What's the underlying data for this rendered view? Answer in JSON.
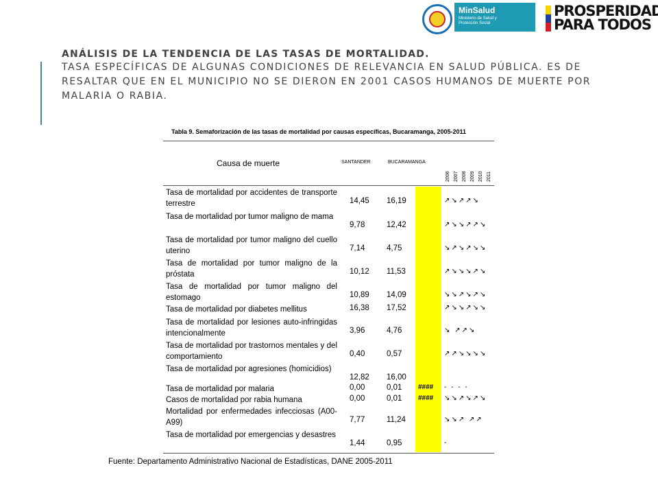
{
  "logos": {
    "minsalud_title": "MinSalud",
    "minsalud_sub": "Ministerio de Salud y Protección Social",
    "prosperidad_line1": "PROSPERIDAD",
    "prosperidad_line2": "PARA TODOS"
  },
  "heading": "Análisis de la tendencia de las tasas de mortalidad.",
  "body": "Tasa específicas de algunas condiciones de relevancia en salud pública. Es de resaltar que en el municipio no se dieron en 2001 casos humanos de muerte por malaria o rabia.",
  "table": {
    "caption": "Tabla 9. Semaforización de las tasas de mortalidad por causas específicas, Bucaramanga, 2005-2011",
    "col_cause": "Causa de muerte",
    "col_santander": "SANTANDER",
    "col_bucaramanga": "BUCARAMANGA",
    "years": [
      "2006",
      "2007",
      "2008",
      "2009",
      "2010",
      "2011"
    ],
    "rows": [
      {
        "cause": "Tasa de mortalidad por accidentes de transporte terrestre",
        "santander": "14,45",
        "bucaramanga": "16,19",
        "hash": "",
        "trend": "↗↘↗↗↘"
      },
      {
        "cause": "Tasa de mortalidad por tumor maligno de mama",
        "santander": "9,78",
        "bucaramanga": "12,42",
        "hash": "",
        "trend": "↗↘↘↗↗↘"
      },
      {
        "cause": "Tasa de mortalidad por tumor maligno del cuello uterino",
        "santander": "7,14",
        "bucaramanga": "4,75",
        "hash": "",
        "trend": "↘↗↘↗↘↘"
      },
      {
        "cause": "Tasa de mortalidad por tumor maligno de la próstata",
        "santander": "10,12",
        "bucaramanga": "11,53",
        "hash": "",
        "trend": "↗↘↘↘↗↘"
      },
      {
        "cause": "Tasa de mortalidad por tumor maligno del estomago",
        "santander": "10,89",
        "bucaramanga": "14,09",
        "hash": "",
        "trend": "↘↘↗↘↗↘"
      },
      {
        "cause": "Tasa de mortalidad por diabetes mellitus",
        "santander": "16,38",
        "bucaramanga": "17,52",
        "hash": "",
        "trend": "↗↘↘↗↘↘"
      },
      {
        "cause": "Tasa de mortalidad por lesiones auto-infringidas intencionalmente",
        "santander": "3,96",
        "bucaramanga": "4,76",
        "hash": "",
        "trend": "↘  ↗↗↘"
      },
      {
        "cause": "Tasa de mortalidad por trastornos mentales y del comportamiento",
        "santander": "0,40",
        "bucaramanga": "0,57",
        "hash": "",
        "trend": "↗↗↘↘↘↘"
      },
      {
        "cause": "Tasa de mortalidad por agresiones (homicidios)",
        "santander": "12,82",
        "bucaramanga": "16,00",
        "hash": "",
        "trend": ""
      },
      {
        "cause": "Tasa de mortalidad por malaria",
        "santander": "0,00",
        "bucaramanga": "0,01",
        "hash": "####",
        "trend": "- -   - -"
      },
      {
        "cause": "Casos de mortalidad por rabia humana",
        "santander": "0,00",
        "bucaramanga": "0,01",
        "hash": "####",
        "trend": "↘↘↗↘↗↘"
      },
      {
        "cause": "Mortalidad por enfermedades infecciosas (A00-A99)",
        "santander": "7,77",
        "bucaramanga": "11,24",
        "hash": "",
        "trend": "↘↘↗  ↗↗"
      },
      {
        "cause": "Tasa de mortalidad por emergencias y desastres",
        "santander": "1,44",
        "bucaramanga": "0,95",
        "hash": "",
        "trend": "    -"
      }
    ],
    "source": "Fuente: Departamento Administrativo Nacional de Estadísticas, DANE 2005-2011"
  },
  "colors": {
    "accent_line": "#3e8b8b",
    "highlight": "#ffff00",
    "minsalud_bg": "#1f9ab3"
  }
}
